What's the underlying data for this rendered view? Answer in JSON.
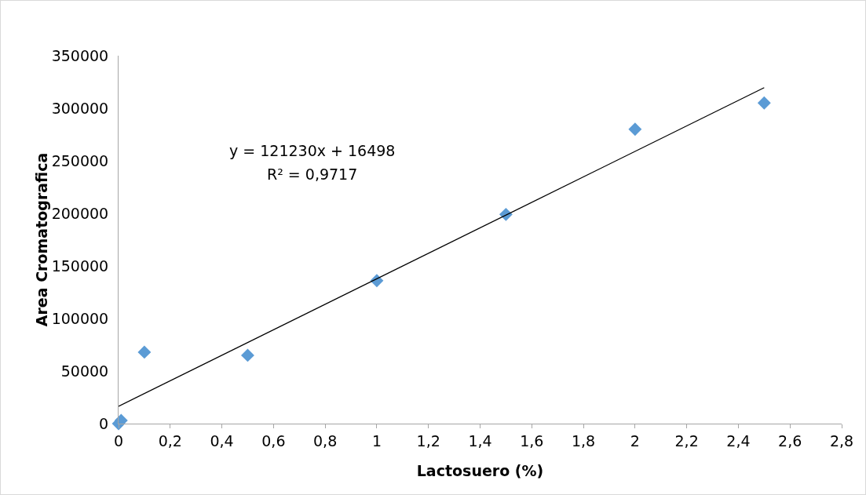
{
  "chart_data": {
    "type": "scatter",
    "xlabel": "Lactosuero (%)",
    "ylabel": "Area Cromatografica",
    "annotations": [
      "y = 121230x + 16498",
      "R² = 0,9717"
    ],
    "series": [
      {
        "color": "#5b9bd5",
        "marker": "diamond",
        "x": [
          0,
          0.01,
          0.1,
          0.5,
          1,
          1.5,
          2,
          2.5
        ],
        "values": [
          0,
          3000,
          68000,
          65000,
          136000,
          199000,
          280000,
          305000
        ]
      },
      {
        "type": "line",
        "color": "#000000",
        "marker": "none",
        "line_style": "solid",
        "x": [
          0,
          2.5
        ],
        "values": [
          16500,
          319600
        ]
      }
    ],
    "xlim": [
      0,
      2.8
    ],
    "xticks": [
      0,
      {
        "value": 0.2,
        "label": "0,2"
      },
      {
        "value": 0.4,
        "label": "0,4"
      },
      {
        "value": 0.6,
        "label": "0,6"
      },
      {
        "value": 0.8,
        "label": "0,8"
      },
      1,
      {
        "value": 1.2,
        "label": "1,2"
      },
      {
        "value": 1.4,
        "label": "1,4"
      },
      {
        "value": 1.6,
        "label": "1,6"
      },
      {
        "value": 1.8,
        "label": "1,8"
      },
      2,
      {
        "value": 2.2,
        "label": "2,2"
      },
      {
        "value": 2.4,
        "label": "2,4"
      },
      {
        "value": 2.6,
        "label": "2,6"
      },
      {
        "value": 2.8,
        "label": "2,8"
      }
    ],
    "ylim": [
      0,
      350000
    ],
    "yticks": [
      0,
      50000,
      100000,
      150000,
      200000,
      250000,
      300000,
      350000
    ],
    "grid": false
  }
}
